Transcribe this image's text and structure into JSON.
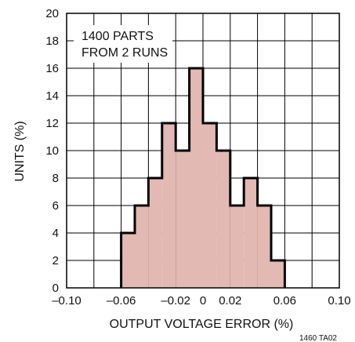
{
  "chart_data": {
    "type": "bar",
    "title": "",
    "xlabel": "OUTPUT VOLTAGE ERROR (%)",
    "ylabel": "UNITS (%)",
    "xlim": [
      -0.1,
      0.1
    ],
    "ylim": [
      0,
      20
    ],
    "x_ticks": [
      "–0.10",
      "–0.06",
      "–0.02",
      "0",
      "0.02",
      "0.06",
      "0.10"
    ],
    "x_tick_values": [
      -0.1,
      -0.06,
      -0.02,
      0,
      0.02,
      0.06,
      0.1
    ],
    "y_ticks": [
      "0",
      "2",
      "4",
      "6",
      "8",
      "10",
      "12",
      "14",
      "16",
      "18",
      "20"
    ],
    "y_tick_values": [
      0,
      2,
      4,
      6,
      8,
      10,
      12,
      14,
      16,
      18,
      20
    ],
    "grid": true,
    "bin_edges": [
      -0.06,
      -0.05,
      -0.04,
      -0.03,
      -0.02,
      -0.01,
      0,
      0.01,
      0.02,
      0.03,
      0.04,
      0.05,
      0.06
    ],
    "values": [
      4,
      6,
      8,
      12,
      10,
      16,
      12,
      10,
      6,
      8,
      6,
      2
    ],
    "annotation": [
      "1400 PARTS",
      "FROM 2 RUNS"
    ],
    "figure_ref": "1460 TA02",
    "colors": {
      "fill": "#e2b9b3",
      "outline": "#000000",
      "grid": "#000000"
    }
  }
}
